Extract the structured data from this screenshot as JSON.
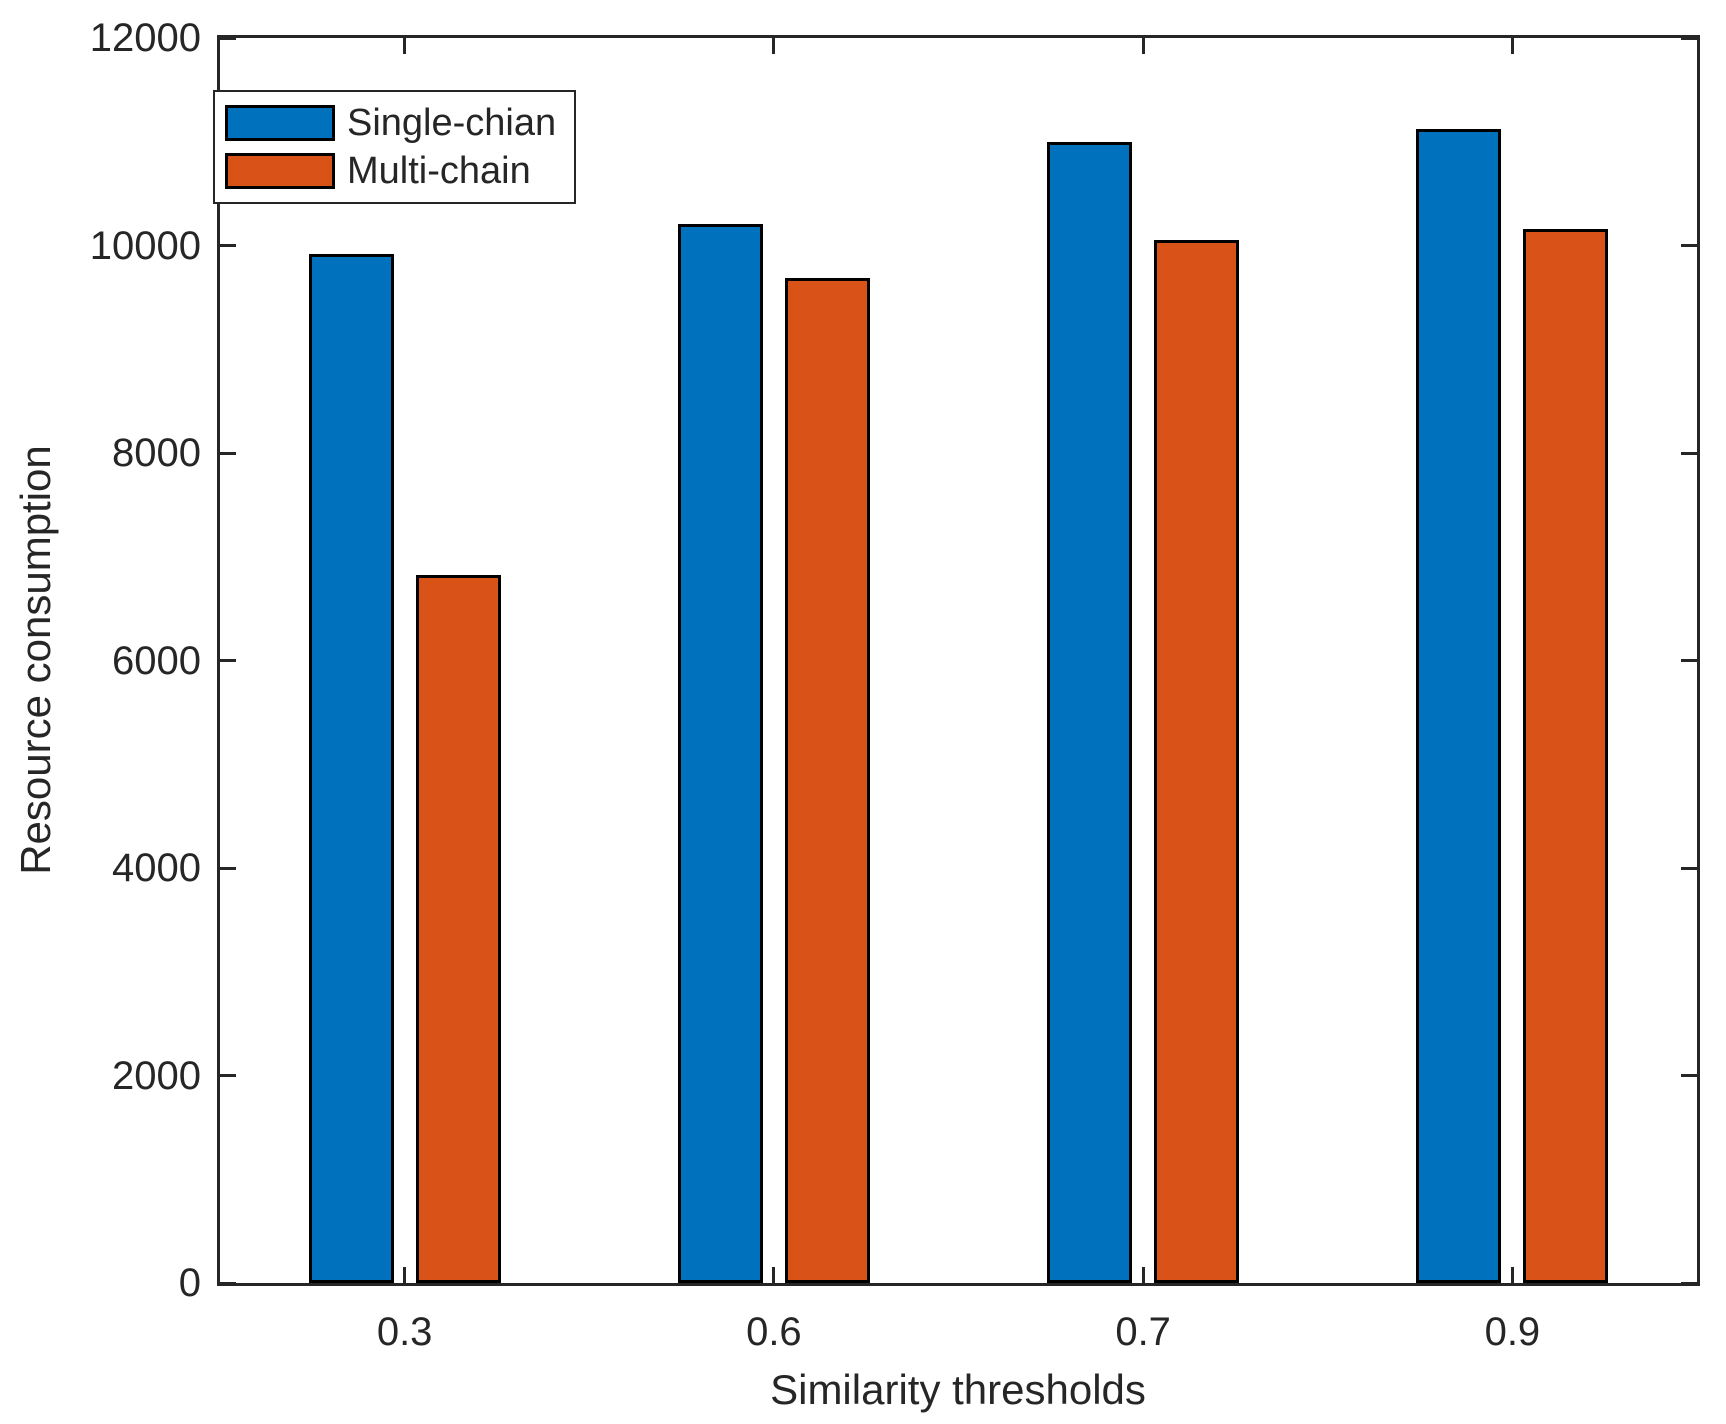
{
  "figure": {
    "background": "#ffffff",
    "axis_color": "#262626",
    "bar_edge_color": "#000000"
  },
  "chart_data": {
    "type": "bar",
    "title": "",
    "xlabel": "Similarity thresholds",
    "ylabel": "Resource consumption",
    "categories": [
      "0.3",
      "0.6",
      "0.7",
      "0.9"
    ],
    "series": [
      {
        "name": "Single-chian",
        "color": "#0072BD",
        "values": [
          9920,
          10210,
          11000,
          11120
        ]
      },
      {
        "name": "Multi-chain",
        "color": "#D95319",
        "values": [
          6820,
          9690,
          10050,
          10160
        ]
      }
    ],
    "ylim": [
      0,
      12000
    ],
    "yticks": [
      0,
      2000,
      4000,
      6000,
      8000,
      10000,
      12000
    ],
    "grid": false,
    "legend_position": "top-left"
  }
}
